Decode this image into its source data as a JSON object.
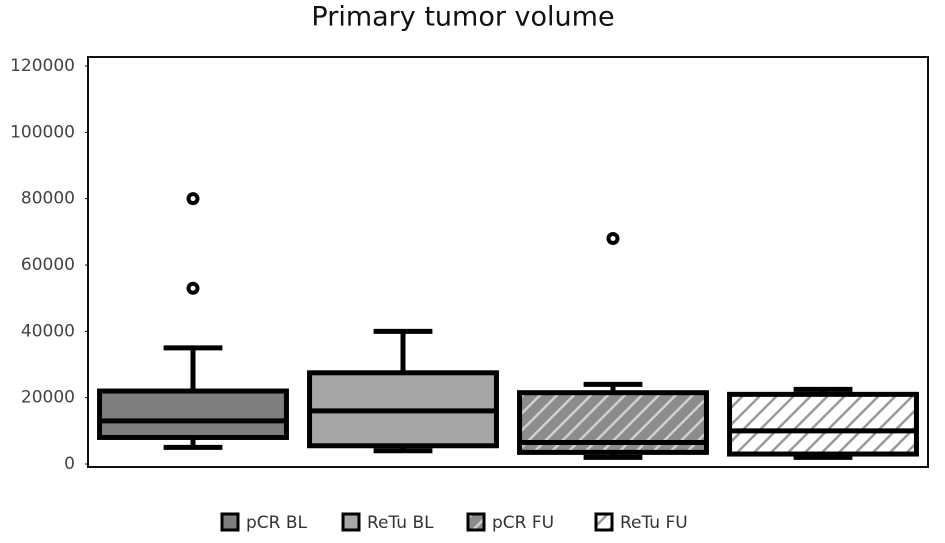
{
  "chart_data": {
    "type": "box",
    "title": "Primary tumor volume",
    "ylim": [
      0,
      120000
    ],
    "yticks": [
      0,
      20000,
      40000,
      60000,
      80000,
      100000,
      120000
    ],
    "series": [
      {
        "name": "pCR BL",
        "color": "#7f7f7f",
        "hatch": false,
        "whisker_low": 5000,
        "q1": 8000,
        "median": 13000,
        "q3": 22000,
        "whisker_high": 35000,
        "outliers": [
          80000,
          53000
        ]
      },
      {
        "name": "ReTu BL",
        "color": "#a6a6a6",
        "hatch": false,
        "whisker_low": 4000,
        "q1": 5500,
        "median": 16000,
        "q3": 27500,
        "whisker_high": 40000,
        "outliers": []
      },
      {
        "name": "pCR FU",
        "color": "#8c8c8c",
        "hatch": true,
        "hatch_color": "#d0d0d0",
        "whisker_low": 2000,
        "q1": 3500,
        "median": 6500,
        "q3": 21500,
        "whisker_high": 24000,
        "outliers": [
          68000
        ]
      },
      {
        "name": "ReTu FU",
        "color": "#ffffff",
        "hatch": true,
        "hatch_color": "#9a9a9a",
        "whisker_low": 2000,
        "q1": 3000,
        "median": 10000,
        "q3": 21000,
        "whisker_high": 22500,
        "outliers": []
      }
    ]
  }
}
